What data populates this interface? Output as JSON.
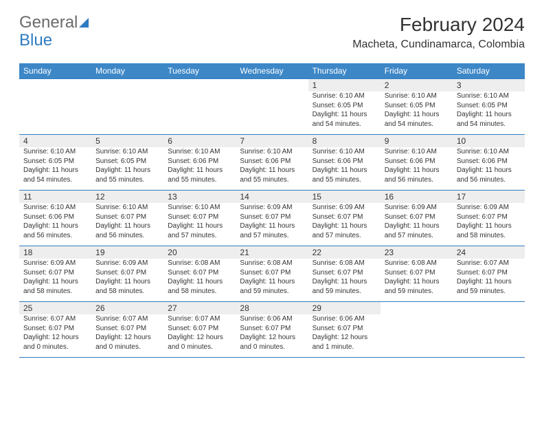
{
  "brand": {
    "part1": "General",
    "part2": "Blue"
  },
  "title": "February 2024",
  "location": "Macheta, Cundinamarca, Colombia",
  "colors": {
    "header_bg": "#3d87c7",
    "header_text": "#ffffff",
    "daynum_bg": "#eeeeee",
    "border": "#2d7cc1",
    "text": "#333333",
    "brand_blue": "#2d7cc1",
    "brand_gray": "#6a6a6a",
    "page_bg": "#ffffff"
  },
  "typography": {
    "month_fontsize": 28,
    "location_fontsize": 16,
    "dayheader_fontsize": 12,
    "daynum_fontsize": 12,
    "body_fontsize": 10
  },
  "day_headers": [
    "Sunday",
    "Monday",
    "Tuesday",
    "Wednesday",
    "Thursday",
    "Friday",
    "Saturday"
  ],
  "weeks": [
    [
      null,
      null,
      null,
      null,
      {
        "n": "1",
        "sr": "Sunrise: 6:10 AM",
        "ss": "Sunset: 6:05 PM",
        "d1": "Daylight: 11 hours",
        "d2": "and 54 minutes."
      },
      {
        "n": "2",
        "sr": "Sunrise: 6:10 AM",
        "ss": "Sunset: 6:05 PM",
        "d1": "Daylight: 11 hours",
        "d2": "and 54 minutes."
      },
      {
        "n": "3",
        "sr": "Sunrise: 6:10 AM",
        "ss": "Sunset: 6:05 PM",
        "d1": "Daylight: 11 hours",
        "d2": "and 54 minutes."
      }
    ],
    [
      {
        "n": "4",
        "sr": "Sunrise: 6:10 AM",
        "ss": "Sunset: 6:05 PM",
        "d1": "Daylight: 11 hours",
        "d2": "and 54 minutes."
      },
      {
        "n": "5",
        "sr": "Sunrise: 6:10 AM",
        "ss": "Sunset: 6:05 PM",
        "d1": "Daylight: 11 hours",
        "d2": "and 55 minutes."
      },
      {
        "n": "6",
        "sr": "Sunrise: 6:10 AM",
        "ss": "Sunset: 6:06 PM",
        "d1": "Daylight: 11 hours",
        "d2": "and 55 minutes."
      },
      {
        "n": "7",
        "sr": "Sunrise: 6:10 AM",
        "ss": "Sunset: 6:06 PM",
        "d1": "Daylight: 11 hours",
        "d2": "and 55 minutes."
      },
      {
        "n": "8",
        "sr": "Sunrise: 6:10 AM",
        "ss": "Sunset: 6:06 PM",
        "d1": "Daylight: 11 hours",
        "d2": "and 55 minutes."
      },
      {
        "n": "9",
        "sr": "Sunrise: 6:10 AM",
        "ss": "Sunset: 6:06 PM",
        "d1": "Daylight: 11 hours",
        "d2": "and 56 minutes."
      },
      {
        "n": "10",
        "sr": "Sunrise: 6:10 AM",
        "ss": "Sunset: 6:06 PM",
        "d1": "Daylight: 11 hours",
        "d2": "and 56 minutes."
      }
    ],
    [
      {
        "n": "11",
        "sr": "Sunrise: 6:10 AM",
        "ss": "Sunset: 6:06 PM",
        "d1": "Daylight: 11 hours",
        "d2": "and 56 minutes."
      },
      {
        "n": "12",
        "sr": "Sunrise: 6:10 AM",
        "ss": "Sunset: 6:07 PM",
        "d1": "Daylight: 11 hours",
        "d2": "and 56 minutes."
      },
      {
        "n": "13",
        "sr": "Sunrise: 6:10 AM",
        "ss": "Sunset: 6:07 PM",
        "d1": "Daylight: 11 hours",
        "d2": "and 57 minutes."
      },
      {
        "n": "14",
        "sr": "Sunrise: 6:09 AM",
        "ss": "Sunset: 6:07 PM",
        "d1": "Daylight: 11 hours",
        "d2": "and 57 minutes."
      },
      {
        "n": "15",
        "sr": "Sunrise: 6:09 AM",
        "ss": "Sunset: 6:07 PM",
        "d1": "Daylight: 11 hours",
        "d2": "and 57 minutes."
      },
      {
        "n": "16",
        "sr": "Sunrise: 6:09 AM",
        "ss": "Sunset: 6:07 PM",
        "d1": "Daylight: 11 hours",
        "d2": "and 57 minutes."
      },
      {
        "n": "17",
        "sr": "Sunrise: 6:09 AM",
        "ss": "Sunset: 6:07 PM",
        "d1": "Daylight: 11 hours",
        "d2": "and 58 minutes."
      }
    ],
    [
      {
        "n": "18",
        "sr": "Sunrise: 6:09 AM",
        "ss": "Sunset: 6:07 PM",
        "d1": "Daylight: 11 hours",
        "d2": "and 58 minutes."
      },
      {
        "n": "19",
        "sr": "Sunrise: 6:09 AM",
        "ss": "Sunset: 6:07 PM",
        "d1": "Daylight: 11 hours",
        "d2": "and 58 minutes."
      },
      {
        "n": "20",
        "sr": "Sunrise: 6:08 AM",
        "ss": "Sunset: 6:07 PM",
        "d1": "Daylight: 11 hours",
        "d2": "and 58 minutes."
      },
      {
        "n": "21",
        "sr": "Sunrise: 6:08 AM",
        "ss": "Sunset: 6:07 PM",
        "d1": "Daylight: 11 hours",
        "d2": "and 59 minutes."
      },
      {
        "n": "22",
        "sr": "Sunrise: 6:08 AM",
        "ss": "Sunset: 6:07 PM",
        "d1": "Daylight: 11 hours",
        "d2": "and 59 minutes."
      },
      {
        "n": "23",
        "sr": "Sunrise: 6:08 AM",
        "ss": "Sunset: 6:07 PM",
        "d1": "Daylight: 11 hours",
        "d2": "and 59 minutes."
      },
      {
        "n": "24",
        "sr": "Sunrise: 6:07 AM",
        "ss": "Sunset: 6:07 PM",
        "d1": "Daylight: 11 hours",
        "d2": "and 59 minutes."
      }
    ],
    [
      {
        "n": "25",
        "sr": "Sunrise: 6:07 AM",
        "ss": "Sunset: 6:07 PM",
        "d1": "Daylight: 12 hours",
        "d2": "and 0 minutes."
      },
      {
        "n": "26",
        "sr": "Sunrise: 6:07 AM",
        "ss": "Sunset: 6:07 PM",
        "d1": "Daylight: 12 hours",
        "d2": "and 0 minutes."
      },
      {
        "n": "27",
        "sr": "Sunrise: 6:07 AM",
        "ss": "Sunset: 6:07 PM",
        "d1": "Daylight: 12 hours",
        "d2": "and 0 minutes."
      },
      {
        "n": "28",
        "sr": "Sunrise: 6:06 AM",
        "ss": "Sunset: 6:07 PM",
        "d1": "Daylight: 12 hours",
        "d2": "and 0 minutes."
      },
      {
        "n": "29",
        "sr": "Sunrise: 6:06 AM",
        "ss": "Sunset: 6:07 PM",
        "d1": "Daylight: 12 hours",
        "d2": "and 1 minute."
      },
      null,
      null
    ]
  ]
}
